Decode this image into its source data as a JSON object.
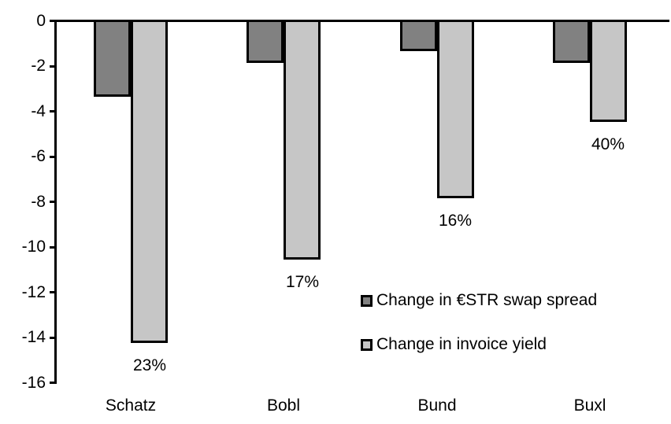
{
  "chart_data": {
    "type": "bar",
    "title": "",
    "categories": [
      "Schatz",
      "Bobl",
      "Bund",
      "Buxl"
    ],
    "series": [
      {
        "name": "Change in €STR swap spread",
        "color": "#818181",
        "values": [
          -3.3,
          -1.8,
          -1.3,
          -1.8
        ],
        "data_labels": [
          "",
          "",
          "",
          ""
        ]
      },
      {
        "name": "Change in invoice yield",
        "color": "#c6c6c6",
        "values": [
          -14.2,
          -10.5,
          -7.8,
          -4.4
        ],
        "data_labels": [
          "23%",
          "17%",
          "16%",
          "40%"
        ]
      }
    ],
    "ylim": [
      -16,
      0
    ],
    "yticks": [
      "0",
      "-2",
      "-4",
      "-6",
      "-8",
      "-10",
      "-12",
      "-14",
      "-16"
    ],
    "grid": false,
    "legend_position": "inside-right",
    "axis_color": "#000000",
    "bar_border_color": "#000000",
    "background_color": "#ffffff"
  }
}
